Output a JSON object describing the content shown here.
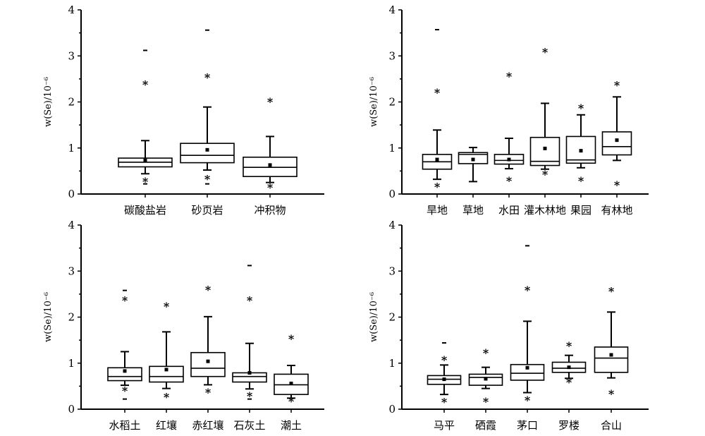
{
  "chart_data": [
    {
      "type": "box",
      "ylabel": "w(Se)/10⁻⁶",
      "ylim": [
        0,
        4
      ],
      "yticks": [
        "0",
        "1",
        "2",
        "3",
        "4"
      ],
      "categories": [
        "碳酸盐岩",
        "砂页岩",
        "冲积物"
      ],
      "boxes": [
        {
          "q1": 0.59,
          "median": 0.69,
          "q3": 0.78,
          "whisker_low": 0.44,
          "whisker_high": 1.16,
          "mean": 0.73,
          "outliers": [
            2.41,
            0.31
          ],
          "extremes": [
            3.12,
            0.22
          ]
        },
        {
          "q1": 0.68,
          "median": 0.84,
          "q3": 1.1,
          "whisker_low": 0.52,
          "whisker_high": 1.89,
          "mean": 0.96,
          "outliers": [
            2.57,
            0.36
          ],
          "extremes": [
            3.56,
            0.22
          ]
        },
        {
          "q1": 0.38,
          "median": 0.58,
          "q3": 0.8,
          "whisker_low": 0.25,
          "whisker_high": 1.25,
          "mean": 0.63,
          "outliers": [
            2.04,
            0.18
          ],
          "extremes": []
        }
      ]
    },
    {
      "type": "box",
      "ylabel": "w(Se)/10⁻⁶",
      "ylim": [
        0,
        4
      ],
      "yticks": [
        "0",
        "1",
        "2",
        "3",
        "4"
      ],
      "categories": [
        "旱地",
        "草地",
        "水田",
        "灌木林地",
        "果园",
        "有林地"
      ],
      "boxes": [
        {
          "q1": 0.54,
          "median": 0.7,
          "q3": 0.86,
          "whisker_low": 0.32,
          "whisker_high": 1.39,
          "mean": 0.75,
          "outliers": [
            2.24,
            0.19
          ],
          "extremes": [
            3.57
          ]
        },
        {
          "q1": 0.66,
          "median": 0.86,
          "q3": 0.9,
          "whisker_low": 0.27,
          "whisker_high": 1.01,
          "mean": 0.75,
          "outliers": [],
          "extremes": []
        },
        {
          "q1": 0.65,
          "median": 0.73,
          "q3": 0.86,
          "whisker_low": 0.55,
          "whisker_high": 1.21,
          "mean": 0.75,
          "outliers": [
            2.59,
            0.32
          ],
          "extremes": []
        },
        {
          "q1": 0.62,
          "median": 0.71,
          "q3": 1.23,
          "whisker_low": 0.54,
          "whisker_high": 1.97,
          "mean": 0.99,
          "outliers": [
            3.12,
            0.46
          ],
          "extremes": []
        },
        {
          "q1": 0.67,
          "median": 0.74,
          "q3": 1.25,
          "whisker_low": 0.57,
          "whisker_high": 1.72,
          "mean": 0.94,
          "outliers": [
            1.9,
            0.32
          ],
          "extremes": []
        },
        {
          "q1": 0.85,
          "median": 1.03,
          "q3": 1.35,
          "whisker_low": 0.73,
          "whisker_high": 2.11,
          "mean": 1.17,
          "outliers": [
            2.4,
            0.23
          ],
          "extremes": []
        }
      ]
    },
    {
      "type": "box",
      "ylabel": "w(Se)/10⁻⁶",
      "ylim": [
        0,
        4
      ],
      "yticks": [
        "0",
        "1",
        "2",
        "3",
        "4"
      ],
      "categories": [
        "水稻土",
        "红壤",
        "赤红壤",
        "石灰土",
        "潮土"
      ],
      "boxes": [
        {
          "q1": 0.62,
          "median": 0.71,
          "q3": 0.9,
          "whisker_low": 0.52,
          "whisker_high": 1.25,
          "mean": 0.83,
          "outliers": [
            2.4,
            0.44
          ],
          "extremes": [
            2.58,
            0.22
          ]
        },
        {
          "q1": 0.59,
          "median": 0.71,
          "q3": 0.93,
          "whisker_low": 0.45,
          "whisker_high": 1.68,
          "mean": 0.86,
          "outliers": [
            2.27,
            0.3
          ],
          "extremes": []
        },
        {
          "q1": 0.71,
          "median": 0.89,
          "q3": 1.23,
          "whisker_low": 0.53,
          "whisker_high": 2.01,
          "mean": 1.04,
          "outliers": [
            2.63,
            0.4
          ],
          "extremes": []
        },
        {
          "q1": 0.59,
          "median": 0.71,
          "q3": 0.79,
          "whisker_low": 0.44,
          "whisker_high": 1.43,
          "mean": 0.79,
          "outliers": [
            2.4,
            0.32
          ],
          "extremes": [
            3.12,
            0.22
          ]
        },
        {
          "q1": 0.32,
          "median": 0.53,
          "q3": 0.76,
          "whisker_low": 0.24,
          "whisker_high": 0.95,
          "mean": 0.56,
          "outliers": [
            1.56,
            0.21
          ],
          "extremes": []
        }
      ]
    },
    {
      "type": "box",
      "ylabel": "w(Se)/10⁻⁶",
      "ylim": [
        0,
        4
      ],
      "yticks": [
        "0",
        "1",
        "2",
        "3",
        "4"
      ],
      "categories": [
        "马平",
        "硒霞",
        "茅口",
        "罗楼",
        "合山"
      ],
      "boxes": [
        {
          "q1": 0.54,
          "median": 0.65,
          "q3": 0.73,
          "whisker_low": 0.32,
          "whisker_high": 0.96,
          "mean": 0.65,
          "outliers": [
            1.1,
            0.19
          ],
          "extremes": [
            1.44
          ]
        },
        {
          "q1": 0.52,
          "median": 0.69,
          "q3": 0.76,
          "whisker_low": 0.45,
          "whisker_high": 0.91,
          "mean": 0.66,
          "outliers": [
            1.26,
            0.2
          ],
          "extremes": []
        },
        {
          "q1": 0.63,
          "median": 0.78,
          "q3": 0.97,
          "whisker_low": 0.36,
          "whisker_high": 1.91,
          "mean": 0.9,
          "outliers": [
            2.62,
            0.23
          ],
          "extremes": [
            3.55
          ]
        },
        {
          "q1": 0.8,
          "median": 0.89,
          "q3": 1.02,
          "whisker_low": 0.67,
          "whisker_high": 1.17,
          "mean": 0.91,
          "outliers": [
            1.41,
            0.62
          ],
          "extremes": []
        },
        {
          "q1": 0.8,
          "median": 1.11,
          "q3": 1.35,
          "whisker_low": 0.68,
          "whisker_high": 2.11,
          "mean": 1.18,
          "outliers": [
            2.6,
            0.37
          ],
          "extremes": []
        }
      ]
    }
  ]
}
